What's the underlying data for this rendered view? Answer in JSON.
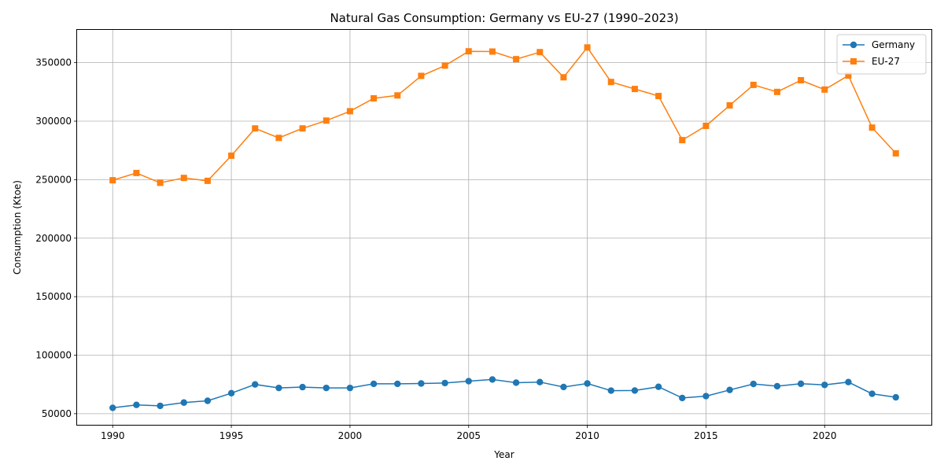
{
  "chart_data": {
    "type": "line",
    "title": "Natural Gas Consumption: Germany vs EU-27 (1990–2023)",
    "xlabel": "Year",
    "ylabel": "Consumption (Ktoe)",
    "xlim": [
      1988.5,
      2024.5
    ],
    "ylim": [
      40500,
      378000
    ],
    "xticks": [
      1990,
      1995,
      2000,
      2005,
      2010,
      2015,
      2020
    ],
    "yticks": [
      50000,
      100000,
      150000,
      200000,
      250000,
      300000,
      350000
    ],
    "grid": true,
    "legend_position": "top-right",
    "x": [
      1990,
      1991,
      1992,
      1993,
      1994,
      1995,
      1996,
      1997,
      1998,
      1999,
      2000,
      2001,
      2002,
      2003,
      2004,
      2005,
      2006,
      2007,
      2008,
      2009,
      2010,
      2011,
      2012,
      2013,
      2014,
      2015,
      2016,
      2017,
      2018,
      2019,
      2020,
      2021,
      2022,
      2023
    ],
    "series": [
      {
        "name": "Germany",
        "color": "#1f77b4",
        "marker": "circle",
        "values": [
          55000,
          57500,
          56700,
          59500,
          61000,
          67500,
          75000,
          72000,
          72700,
          72000,
          72000,
          75500,
          75500,
          75800,
          76200,
          77800,
          79200,
          76500,
          77000,
          72800,
          75800,
          69700,
          69800,
          73000,
          63400,
          65000,
          70300,
          75400,
          73500,
          75600,
          74600,
          77000,
          67000,
          64000
        ]
      },
      {
        "name": "EU-27",
        "color": "#ff7f0e",
        "marker": "square",
        "values": [
          249500,
          255700,
          247300,
          251500,
          249000,
          270500,
          293800,
          285700,
          293800,
          300500,
          308500,
          319500,
          322000,
          338700,
          347500,
          359700,
          359500,
          353000,
          359000,
          337500,
          363000,
          333500,
          327500,
          321500,
          283800,
          296000,
          313500,
          331000,
          325000,
          335000,
          327000,
          339000,
          294500,
          272500
        ]
      }
    ]
  }
}
